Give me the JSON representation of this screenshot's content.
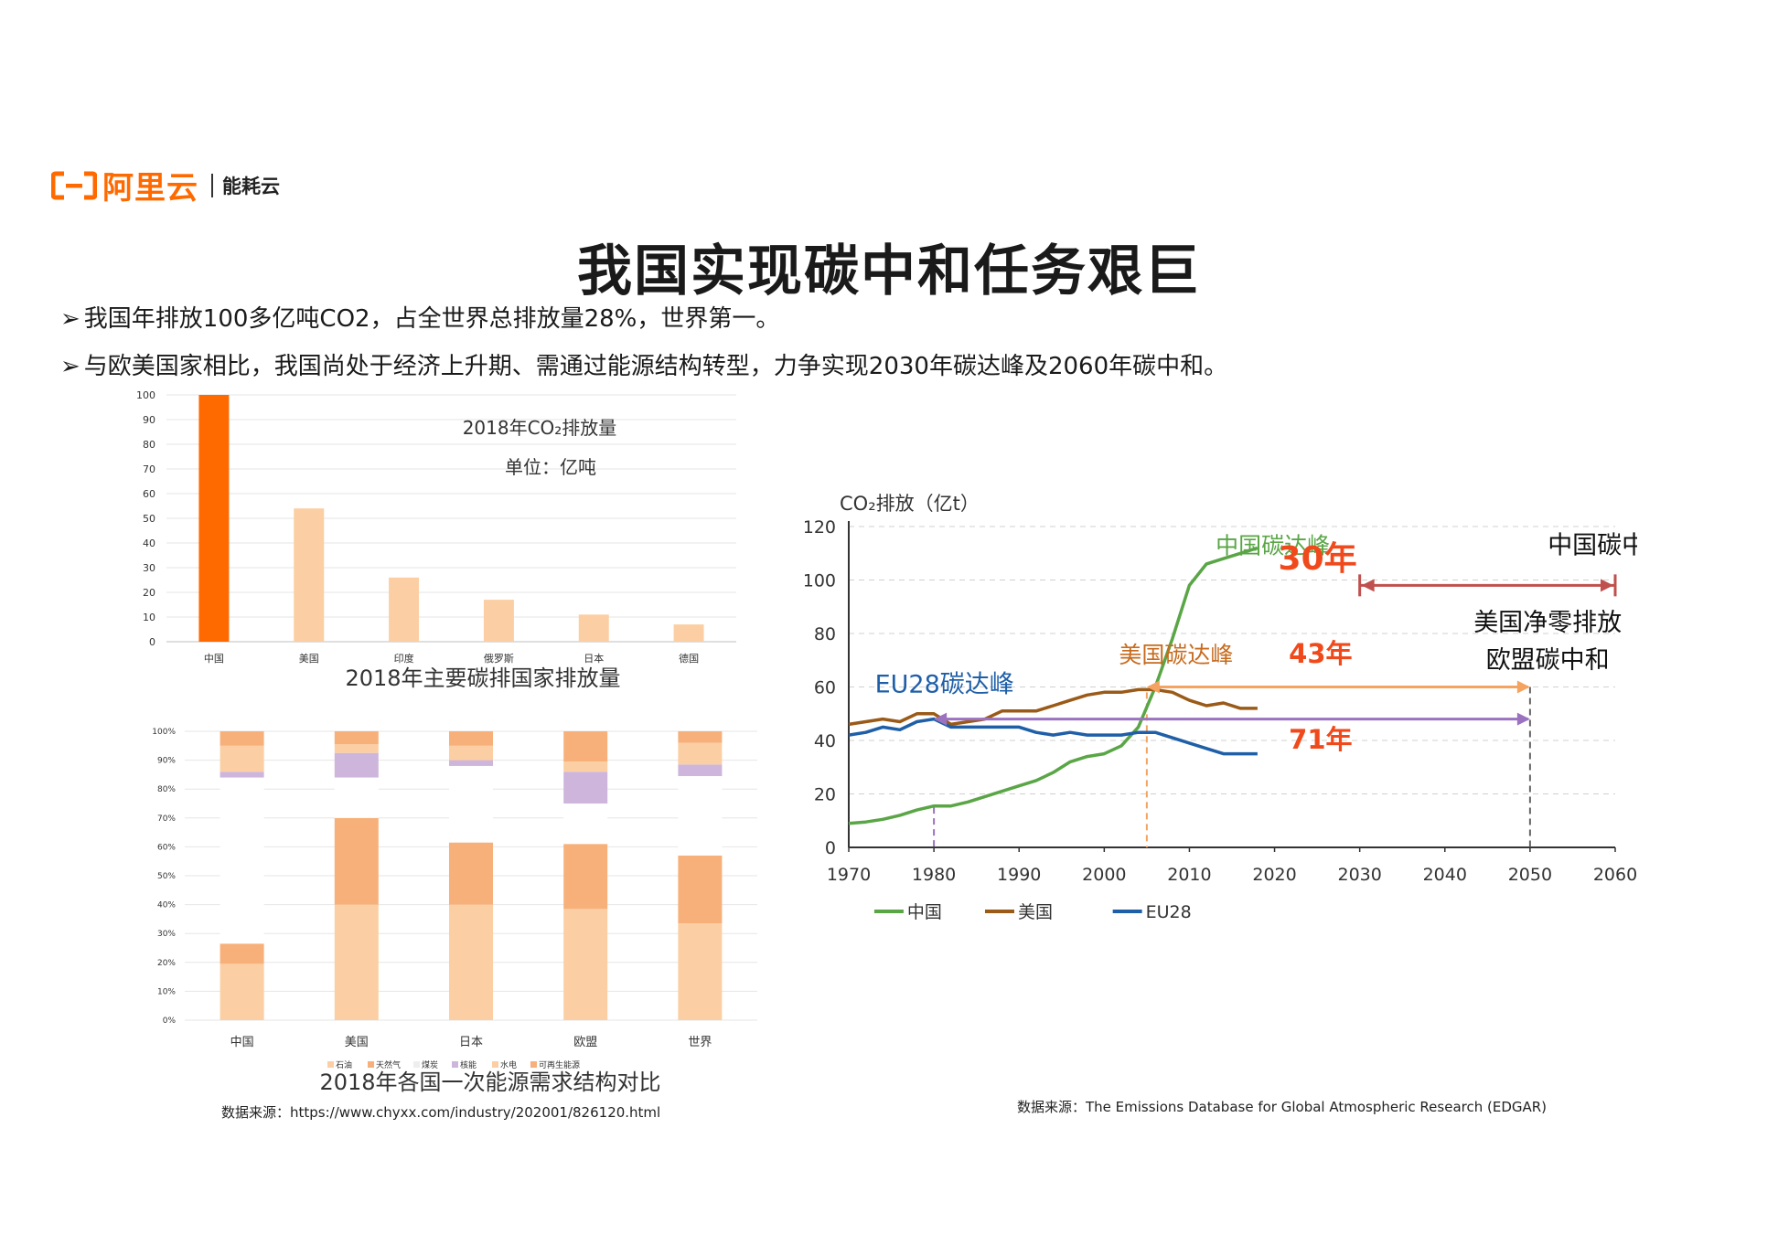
{
  "brand": {
    "name": "阿里云",
    "sub": "能耗云"
  },
  "title": "我国实现碳中和任务艰巨",
  "bullets": [
    "我国年排放100多亿吨CO2，占全世界总排放量28%，世界第一。",
    "与欧美国家相比，我国尚处于经济上升期、需通过能源结构转型，力争实现2030年碳达峰及2060年碳中和。"
  ],
  "colors": {
    "accent": "#ff6a00",
    "peach": "#fbcfa3",
    "orange_mid": "#f7b07a",
    "lavender": "#cdb5dc",
    "green": "#5aa646",
    "brown": "#9a5a18",
    "blue": "#1f5fa8",
    "red_arrow": "#c0504d",
    "orange_arrow": "#f4a460",
    "purple_arrow": "#9b72c0",
    "red_text": "#f04a1c"
  },
  "chart_data": [
    {
      "type": "bar",
      "title": "2018年主要碳排国家排放量",
      "annotation_title": "2018年CO₂排放量",
      "annotation_unit": "单位：亿吨",
      "categories": [
        "中国",
        "美国",
        "印度",
        "俄罗斯",
        "日本",
        "德国"
      ],
      "values": [
        100,
        54,
        26,
        17,
        11,
        7
      ],
      "highlight_index": 0,
      "ylim": [
        0,
        100
      ],
      "yticks": [
        "0",
        "10",
        "20",
        "30",
        "40",
        "50",
        "60",
        "70",
        "80",
        "90",
        "100"
      ]
    },
    {
      "type": "bar",
      "stacked": true,
      "title": "2018年各国一次能源需求结构对比",
      "categories": [
        "中国",
        "美国",
        "日本",
        "欧盟",
        "世界"
      ],
      "ylim": [
        0,
        100
      ],
      "yticks": [
        "0%",
        "10%",
        "20%",
        "30%",
        "40%",
        "50%",
        "60%",
        "70%",
        "80%",
        "90%",
        "100%"
      ],
      "legend": [
        "石油",
        "天然气",
        "煤炭",
        "核能",
        "水电",
        "可再生能源"
      ],
      "series": [
        {
          "name": "石油",
          "values": [
            19.5,
            40,
            40,
            38.5,
            33.5
          ]
        },
        {
          "name": "天然气",
          "values": [
            7,
            30,
            21.5,
            22.5,
            23.5
          ]
        },
        {
          "name": "煤炭",
          "values": [
            57.5,
            14,
            26.5,
            14,
            27.5
          ]
        },
        {
          "name": "核能",
          "values": [
            2,
            8.5,
            2,
            11,
            4
          ]
        },
        {
          "name": "水电",
          "values": [
            9,
            3,
            5,
            3.5,
            7.5
          ]
        },
        {
          "name": "可再生能源",
          "values": [
            5,
            4.5,
            5,
            10.5,
            4
          ]
        }
      ]
    },
    {
      "type": "line",
      "ylabel": "CO₂排放（亿t）",
      "xlim": [
        1970,
        2060
      ],
      "ylim": [
        0,
        120
      ],
      "xticks": [
        "1970",
        "1980",
        "1990",
        "2000",
        "2010",
        "2020",
        "2030",
        "2040",
        "2050",
        "2060"
      ],
      "yticks": [
        "0",
        "20",
        "40",
        "60",
        "80",
        "100",
        "120"
      ],
      "series": [
        {
          "name": "中国",
          "x": [
            1970,
            1972,
            1974,
            1976,
            1978,
            1980,
            1982,
            1984,
            1986,
            1988,
            1990,
            1992,
            1994,
            1996,
            1998,
            2000,
            2002,
            2004,
            2006,
            2008,
            2010,
            2012,
            2014,
            2016,
            2018
          ],
          "y": [
            9,
            9.5,
            10.5,
            12,
            14,
            15.5,
            15.5,
            17,
            19,
            21,
            23,
            25,
            28,
            32,
            34,
            35,
            38,
            45,
            60,
            78,
            98,
            106,
            108,
            110,
            112
          ]
        },
        {
          "name": "美国",
          "x": [
            1970,
            1972,
            1974,
            1976,
            1978,
            1980,
            1982,
            1984,
            1986,
            1988,
            1990,
            1992,
            1994,
            1996,
            1998,
            2000,
            2002,
            2004,
            2006,
            2008,
            2010,
            2012,
            2014,
            2016,
            2018
          ],
          "y": [
            46,
            47,
            48,
            47,
            50,
            50,
            46,
            47,
            48,
            51,
            51,
            51,
            53,
            55,
            57,
            58,
            58,
            59,
            59,
            58,
            55,
            53,
            54,
            52,
            52
          ]
        },
        {
          "name": "EU28",
          "x": [
            1970,
            1972,
            1974,
            1976,
            1978,
            1980,
            1982,
            1984,
            1986,
            1988,
            1990,
            1992,
            1994,
            1996,
            1998,
            2000,
            2002,
            2004,
            2006,
            2008,
            2010,
            2012,
            2014,
            2016,
            2018
          ],
          "y": [
            42,
            43,
            45,
            44,
            47,
            48,
            45,
            45,
            45,
            45,
            45,
            43,
            42,
            43,
            42,
            42,
            42,
            43,
            43,
            41,
            39,
            37,
            35,
            35,
            35
          ]
        }
      ],
      "annotations": {
        "cn_peak": "中国碳达峰",
        "us_peak": "美国碳达峰",
        "eu_peak": "EU28碳达峰",
        "years_30": "30年",
        "years_43": "43年",
        "years_71": "71年",
        "cn_neutral": "中国碳中和",
        "us_netzero": "美国净零排放",
        "eu_neutral": "欧盟碳中和"
      }
    }
  ],
  "sources": {
    "left": "数据来源：https://www.chyxx.com/industry/202001/826120.html",
    "right": "数据来源：The Emissions Database for Global Atmospheric Research (EDGAR)"
  }
}
